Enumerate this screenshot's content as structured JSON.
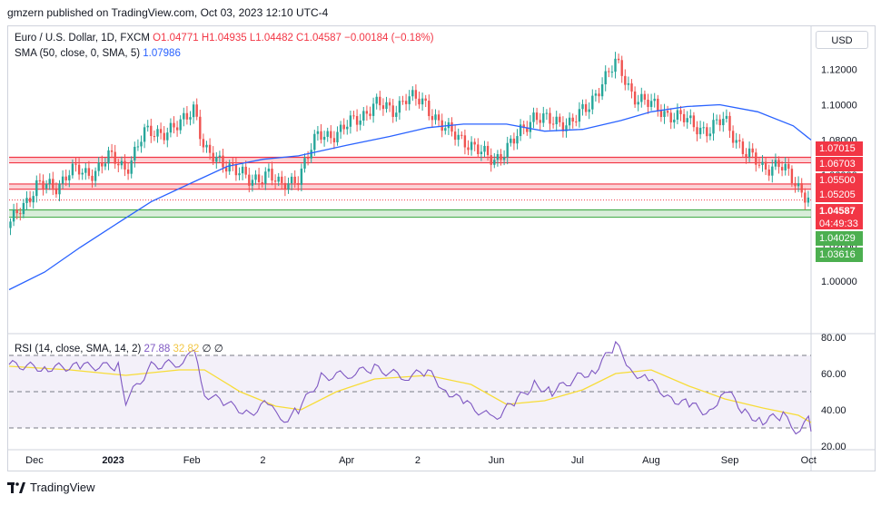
{
  "header": {
    "published": "gmzern published on TradingView.com, Oct 03, 2023 12:10 UTC-4"
  },
  "legend": {
    "symbol": "Euro / U.S. Dollar, 1D, FXCM",
    "ohlc": "O1.04771  H1.04935  L1.04482  C1.04587  −0.00184 (−0.18%)",
    "sma_label": "SMA (50, close, 0, SMA, 5)",
    "sma_value": "1.07986",
    "rsi_label": "RSI (14, close, SMA, 14, 2)",
    "rsi_value": "27.88",
    "rsi_sma_value": "32.82",
    "rsi_extra": "∅  ∅"
  },
  "currency_button": "USD",
  "price_tags": {
    "levels": [
      "1.07015",
      "1.06703",
      "1.05500",
      "1.05205",
      "1.04029",
      "1.03616"
    ],
    "last_price": "1.04587",
    "countdown": "04:49:33"
  },
  "footer": {
    "brand": "TradingView"
  },
  "colors": {
    "up": "#26a69a",
    "down": "#ef5350",
    "sma": "#2962ff",
    "rsi": "#7e57c2",
    "rsi_sma": "#f7dc38",
    "resistance": "#f23645",
    "support": "#4caf50"
  },
  "chart_data": [
    {
      "type": "candlestick",
      "title": "Euro / U.S. Dollar, 1D, FXCM",
      "x_ticks": [
        "Dec",
        "2023",
        "Feb",
        "2",
        "Apr",
        "2",
        "Jun",
        "Jul",
        "Aug",
        "Sep",
        "Oct"
      ],
      "y_ticks": [
        "1.12000",
        "1.10000",
        "1.08000",
        "1.06000",
        "1.04000",
        "1.02000",
        "1.00000"
      ],
      "ylim": [
        0.986,
        1.126
      ],
      "close_path": [
        [
          "2022-11-21",
          1.03
        ],
        [
          "2022-11-25",
          1.041
        ],
        [
          "2022-12-02",
          1.054
        ],
        [
          "2022-12-09",
          1.053
        ],
        [
          "2022-12-15",
          1.063
        ],
        [
          "2022-12-22",
          1.06
        ],
        [
          "2022-12-30",
          1.07
        ],
        [
          "2023-01-06",
          1.064
        ],
        [
          "2023-01-13",
          1.083
        ],
        [
          "2023-01-20",
          1.085
        ],
        [
          "2023-01-27",
          1.087
        ],
        [
          "2023-02-02",
          1.1
        ],
        [
          "2023-02-06",
          1.074
        ],
        [
          "2023-02-10",
          1.068
        ],
        [
          "2023-02-17",
          1.066
        ],
        [
          "2023-02-24",
          1.055
        ],
        [
          "2023-03-03",
          1.063
        ],
        [
          "2023-03-08",
          1.052
        ],
        [
          "2023-03-15",
          1.06
        ],
        [
          "2023-03-23",
          1.083
        ],
        [
          "2023-03-31",
          1.084
        ],
        [
          "2023-04-05",
          1.09
        ],
        [
          "2023-04-14",
          1.1
        ],
        [
          "2023-04-21",
          1.097
        ],
        [
          "2023-04-26",
          1.104
        ],
        [
          "2023-05-04",
          1.101
        ],
        [
          "2023-05-12",
          1.085
        ],
        [
          "2023-05-19",
          1.081
        ],
        [
          "2023-05-26",
          1.072
        ],
        [
          "2023-05-31",
          1.069
        ],
        [
          "2023-06-08",
          1.079
        ],
        [
          "2023-06-16",
          1.095
        ],
        [
          "2023-06-23",
          1.089
        ],
        [
          "2023-06-30",
          1.091
        ],
        [
          "2023-07-07",
          1.097
        ],
        [
          "2023-07-13",
          1.115
        ],
        [
          "2023-07-18",
          1.123
        ],
        [
          "2023-07-25",
          1.106
        ],
        [
          "2023-07-31",
          1.1
        ],
        [
          "2023-08-08",
          1.095
        ],
        [
          "2023-08-16",
          1.09
        ],
        [
          "2023-08-24",
          1.085
        ],
        [
          "2023-08-30",
          1.092
        ],
        [
          "2023-09-07",
          1.072
        ],
        [
          "2023-09-14",
          1.065
        ],
        [
          "2023-09-20",
          1.066
        ],
        [
          "2023-09-26",
          1.057
        ],
        [
          "2023-10-03",
          1.046
        ]
      ],
      "sma_path": [
        [
          "2022-11-21",
          0.995
        ],
        [
          "2022-12-05",
          1.005
        ],
        [
          "2022-12-19",
          1.019
        ],
        [
          "2023-01-03",
          1.033
        ],
        [
          "2023-01-16",
          1.045
        ],
        [
          "2023-01-31",
          1.055
        ],
        [
          "2023-02-15",
          1.065
        ],
        [
          "2023-03-01",
          1.069
        ],
        [
          "2023-03-15",
          1.071
        ],
        [
          "2023-04-03",
          1.077
        ],
        [
          "2023-04-20",
          1.082
        ],
        [
          "2023-05-05",
          1.087
        ],
        [
          "2023-05-19",
          1.089
        ],
        [
          "2023-06-05",
          1.089
        ],
        [
          "2023-06-20",
          1.085
        ],
        [
          "2023-07-05",
          1.086
        ],
        [
          "2023-07-20",
          1.091
        ],
        [
          "2023-08-01",
          1.096
        ],
        [
          "2023-08-15",
          1.099
        ],
        [
          "2023-08-28",
          1.1
        ],
        [
          "2023-09-12",
          1.096
        ],
        [
          "2023-09-26",
          1.088
        ],
        [
          "2023-10-03",
          1.08
        ]
      ],
      "levels": [
        {
          "price": 1.07015,
          "kind": "resistance"
        },
        {
          "price": 1.06703,
          "kind": "resistance"
        },
        {
          "price": 1.055,
          "kind": "resistance"
        },
        {
          "price": 1.05205,
          "kind": "resistance"
        },
        {
          "price": 1.04029,
          "kind": "support"
        },
        {
          "price": 1.03616,
          "kind": "support"
        }
      ],
      "last_price": 1.04587
    },
    {
      "type": "line",
      "title": "RSI (14, close, SMA, 14, 2)",
      "y_ticks": [
        "80.00",
        "60.00",
        "40.00",
        "20.00"
      ],
      "ylim": [
        20,
        80
      ],
      "band": [
        30,
        70
      ],
      "midline": 50,
      "rsi_path": [
        [
          "2022-11-21",
          65
        ],
        [
          "2022-12-05",
          63
        ],
        [
          "2022-12-19",
          64
        ],
        [
          "2023-01-03",
          64
        ],
        [
          "2023-01-06",
          45
        ],
        [
          "2023-01-16",
          64
        ],
        [
          "2023-01-27",
          66
        ],
        [
          "2023-02-02",
          71
        ],
        [
          "2023-02-06",
          49
        ],
        [
          "2023-02-15",
          43
        ],
        [
          "2023-02-24",
          38
        ],
        [
          "2023-03-03",
          44
        ],
        [
          "2023-03-08",
          33
        ],
        [
          "2023-03-15",
          40
        ],
        [
          "2023-03-24",
          58
        ],
        [
          "2023-04-05",
          60
        ],
        [
          "2023-04-14",
          63
        ],
        [
          "2023-04-26",
          58
        ],
        [
          "2023-05-05",
          61
        ],
        [
          "2023-05-12",
          51
        ],
        [
          "2023-05-19",
          44
        ],
        [
          "2023-05-31",
          35
        ],
        [
          "2023-06-08",
          44
        ],
        [
          "2023-06-16",
          54
        ],
        [
          "2023-06-23",
          50
        ],
        [
          "2023-07-03",
          58
        ],
        [
          "2023-07-10",
          62
        ],
        [
          "2023-07-18",
          76
        ],
        [
          "2023-07-25",
          61
        ],
        [
          "2023-07-31",
          56
        ],
        [
          "2023-08-09",
          46
        ],
        [
          "2023-08-16",
          43
        ],
        [
          "2023-08-24",
          38
        ],
        [
          "2023-08-30",
          52
        ],
        [
          "2023-09-07",
          38
        ],
        [
          "2023-09-14",
          34
        ],
        [
          "2023-09-22",
          37
        ],
        [
          "2023-09-27",
          28
        ],
        [
          "2023-10-02",
          36
        ],
        [
          "2023-10-03",
          28
        ]
      ],
      "rsi_sma_path": [
        [
          "2022-11-21",
          64
        ],
        [
          "2022-12-15",
          62
        ],
        [
          "2023-01-06",
          59
        ],
        [
          "2023-01-27",
          62
        ],
        [
          "2023-02-06",
          62
        ],
        [
          "2023-02-20",
          50
        ],
        [
          "2023-03-06",
          42
        ],
        [
          "2023-03-16",
          40
        ],
        [
          "2023-03-30",
          50
        ],
        [
          "2023-04-14",
          57
        ],
        [
          "2023-05-05",
          59
        ],
        [
          "2023-05-22",
          54
        ],
        [
          "2023-06-05",
          43
        ],
        [
          "2023-06-20",
          45
        ],
        [
          "2023-07-05",
          51
        ],
        [
          "2023-07-18",
          60
        ],
        [
          "2023-08-01",
          62
        ],
        [
          "2023-08-16",
          53
        ],
        [
          "2023-08-30",
          46
        ],
        [
          "2023-09-14",
          41
        ],
        [
          "2023-09-28",
          37
        ],
        [
          "2023-10-03",
          33
        ]
      ],
      "last_rsi": 27.88,
      "last_rsi_sma": 32.82
    }
  ]
}
